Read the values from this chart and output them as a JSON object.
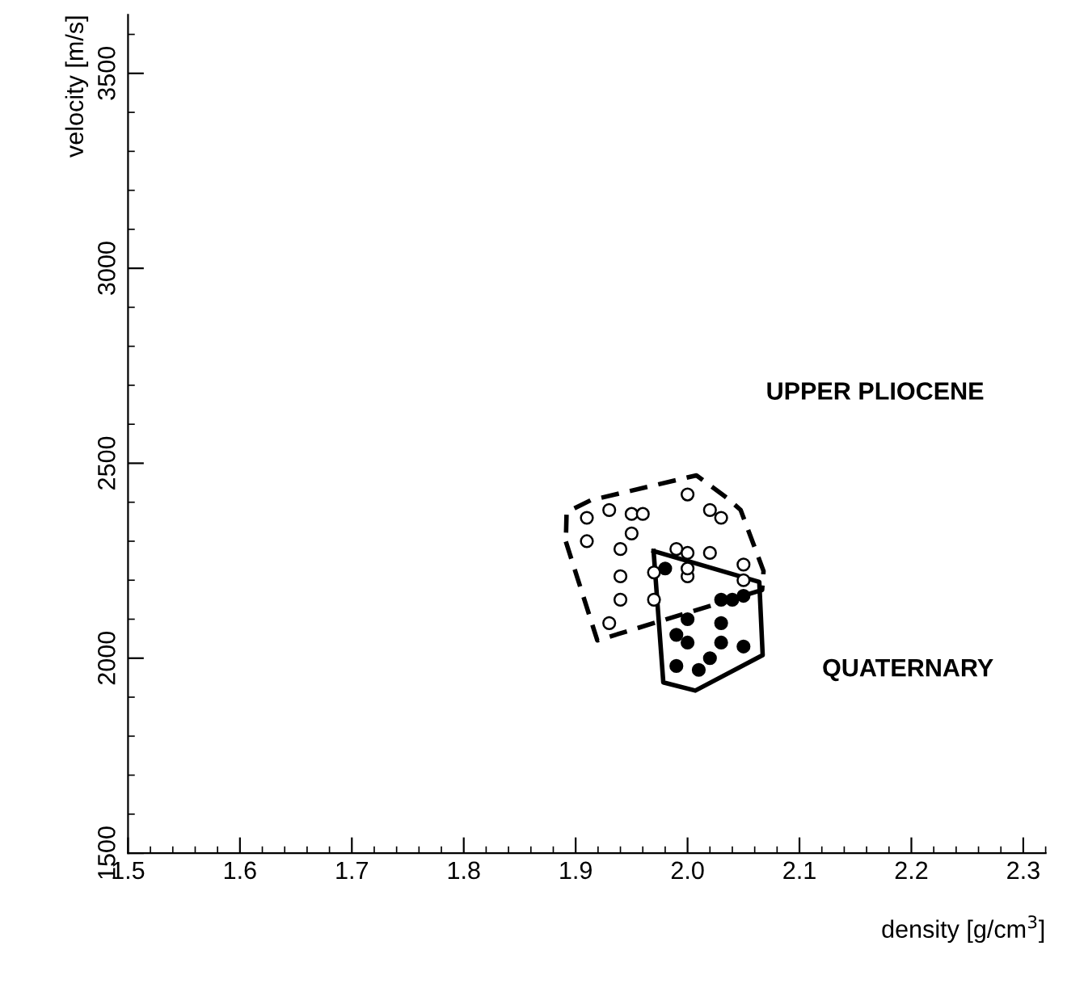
{
  "chart_data": {
    "type": "scatter",
    "xlabel": "density [g/cm$^{3}$]",
    "ylabel": "velocity [m/s]",
    "xlim": [
      1.5,
      2.32
    ],
    "ylim": [
      1500,
      3650
    ],
    "xticks": [
      {
        "value": 1.5,
        "label": "1.5"
      },
      {
        "value": 1.6,
        "label": "1.6"
      },
      {
        "value": 1.7,
        "label": "1.7"
      },
      {
        "value": 1.8,
        "label": "1.8"
      },
      {
        "value": 1.9,
        "label": "1.9"
      },
      {
        "value": 2.0,
        "label": "2.0"
      },
      {
        "value": 2.1,
        "label": "2.1"
      },
      {
        "value": 2.2,
        "label": "2.2"
      },
      {
        "value": 2.3,
        "label": "2.3"
      }
    ],
    "yticks": [
      1500,
      2000,
      2500,
      3000,
      3500
    ],
    "grid": false,
    "legend": false,
    "marker": "circle",
    "series": [
      {
        "name": "UPPER PLIOCENE",
        "color": "#ffffff",
        "line_style": "dashed",
        "x": [
          1.91,
          1.93,
          1.95,
          1.96,
          2.0,
          2.02,
          2.03,
          1.91,
          1.95,
          1.94,
          1.99,
          2.0,
          2.02,
          1.97,
          1.94,
          2.0,
          2.0,
          2.05,
          2.05,
          1.94,
          1.97,
          1.93
        ],
        "values": [
          2360,
          2380,
          2370,
          2370,
          2420,
          2380,
          2360,
          2300,
          2320,
          2280,
          2280,
          2270,
          2270,
          2220,
          2210,
          2210,
          2230,
          2240,
          2200,
          2150,
          2150,
          2090
        ]
      },
      {
        "name": "QUATERNARY",
        "color": "#000000",
        "line_style": "solid",
        "x": [
          1.98,
          2.03,
          2.04,
          2.05,
          2.0,
          2.03,
          1.99,
          2.0,
          2.03,
          2.05,
          1.99,
          2.01,
          2.02
        ],
        "values": [
          2230,
          2150,
          2150,
          2160,
          2100,
          2090,
          2060,
          2040,
          2040,
          2030,
          1980,
          1970,
          2000
        ]
      }
    ]
  }
}
